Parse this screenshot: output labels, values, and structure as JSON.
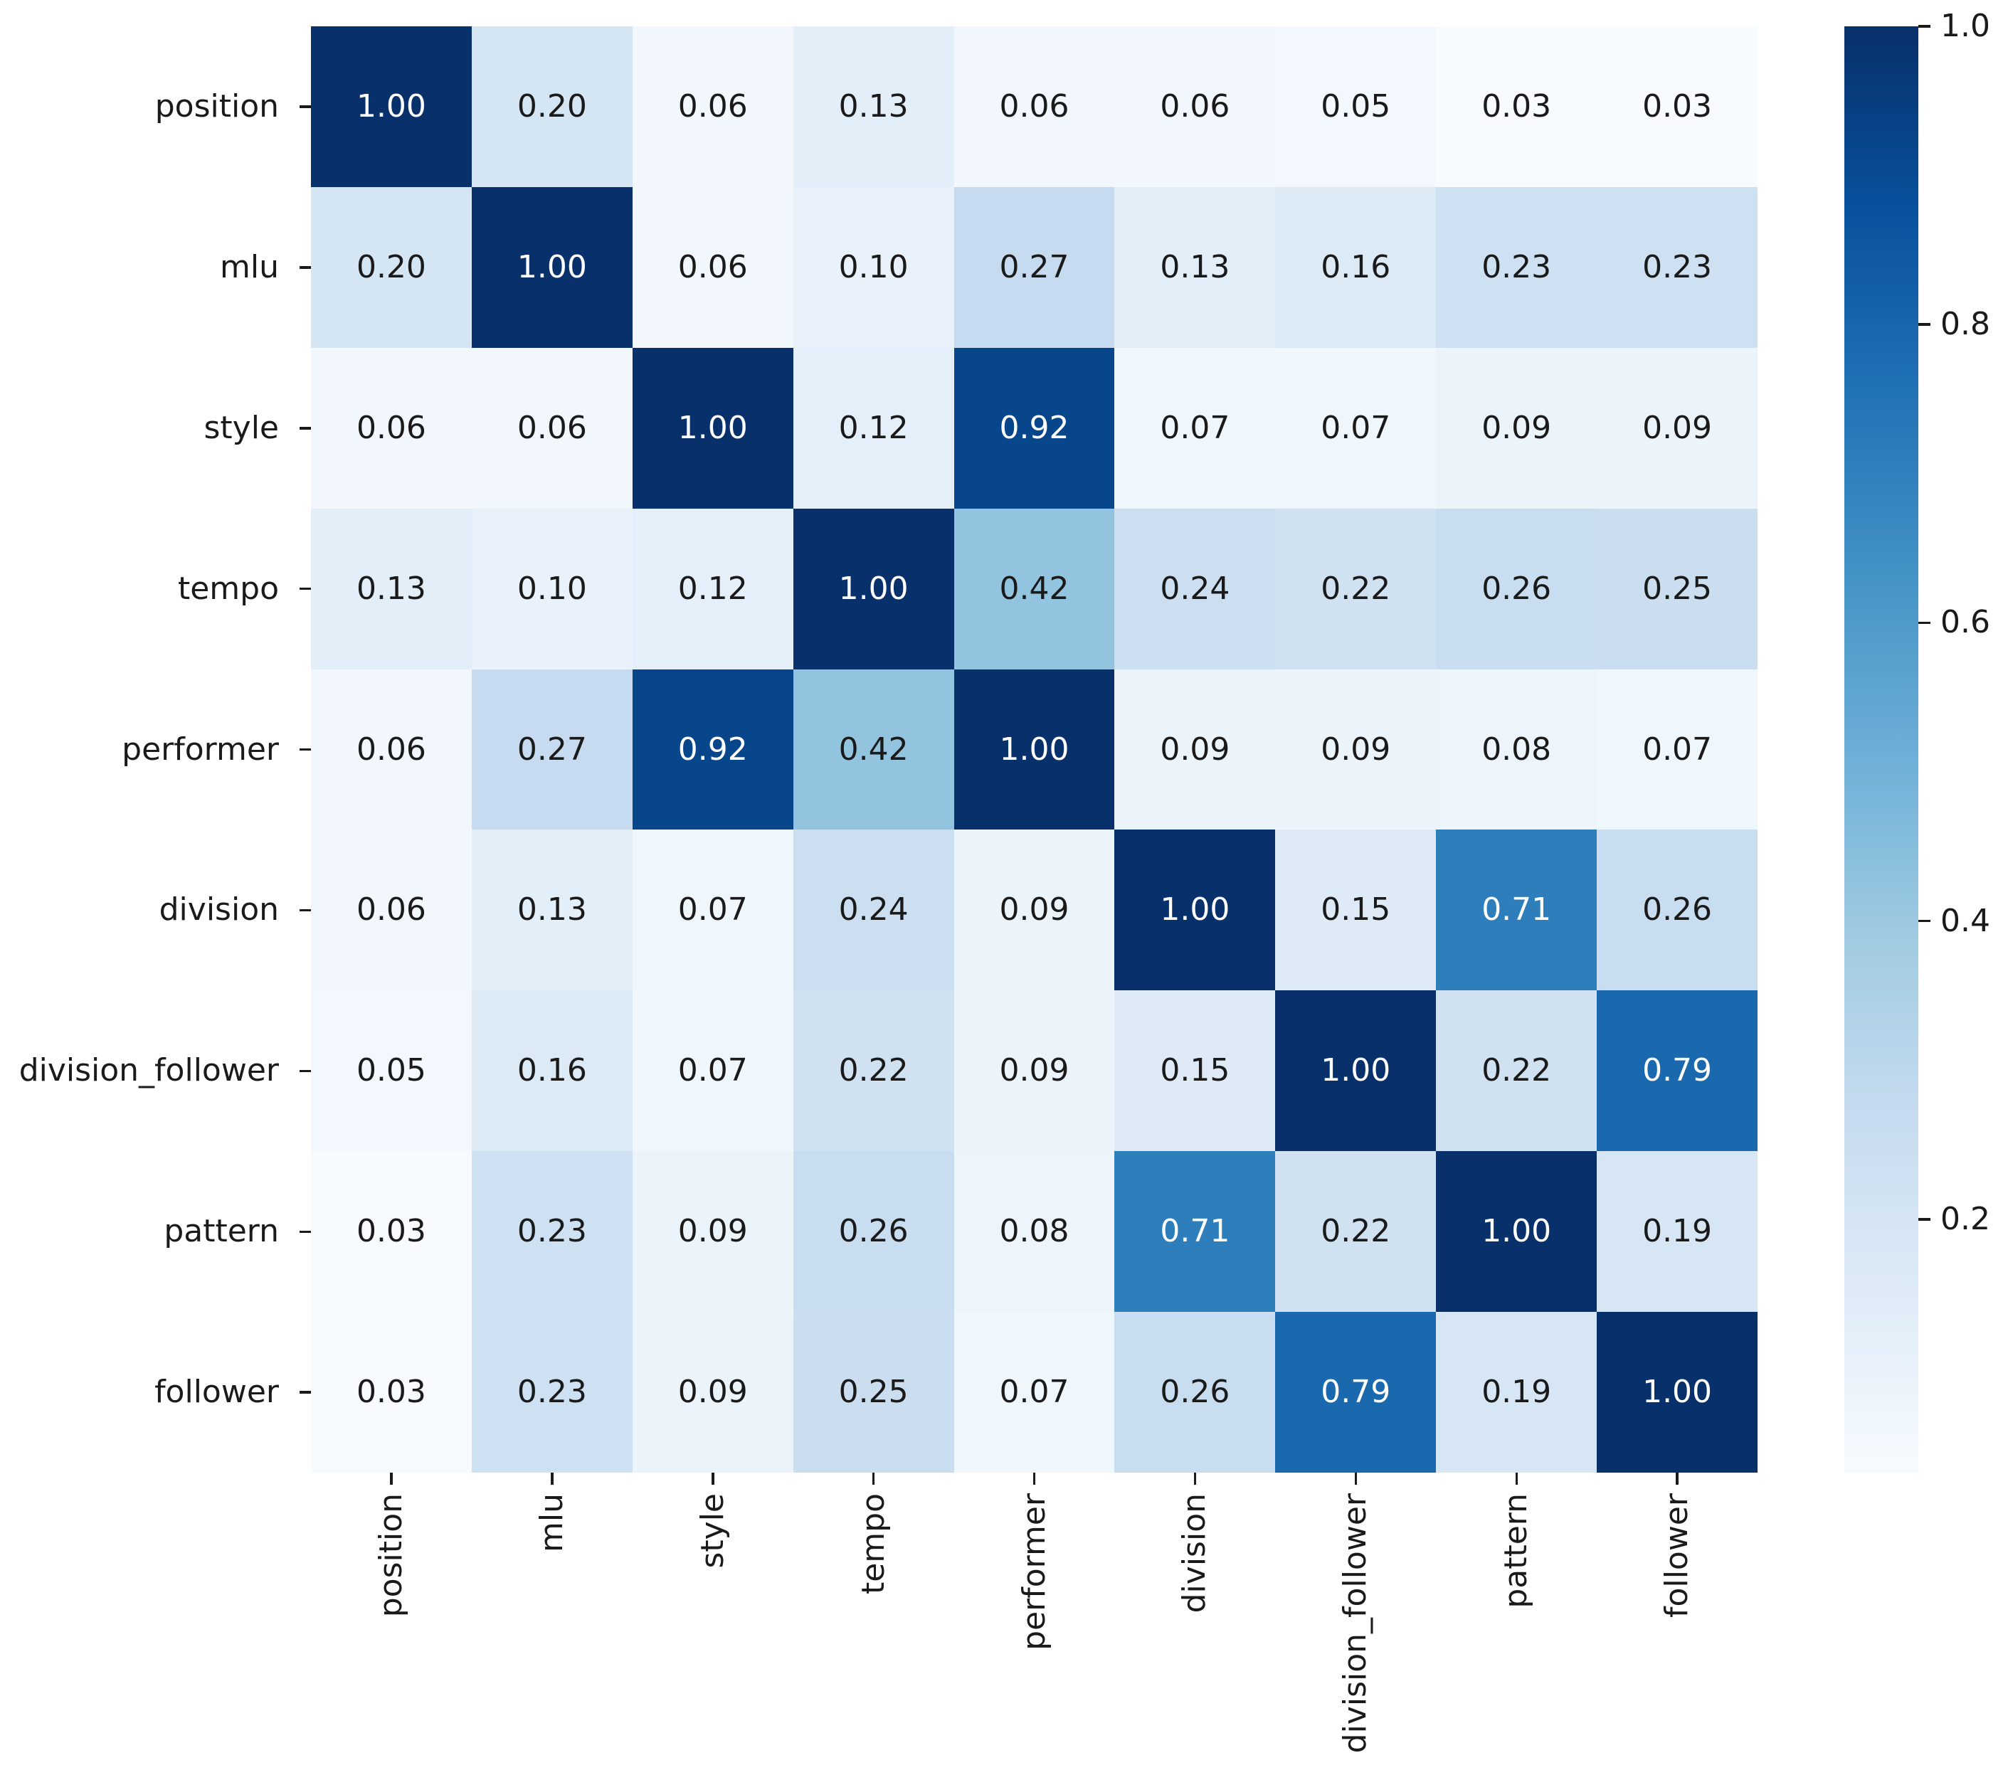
{
  "figure": {
    "type": "correlation-heatmap",
    "background": "#ffffff"
  },
  "chart_data": {
    "type": "heatmap",
    "title": "",
    "xlabel": "",
    "ylabel": "",
    "categories": [
      "position",
      "mlu",
      "style",
      "tempo",
      "performer",
      "division",
      "division_follower",
      "pattern",
      "follower"
    ],
    "matrix": [
      [
        1.0,
        0.2,
        0.06,
        0.13,
        0.06,
        0.06,
        0.05,
        0.03,
        0.03
      ],
      [
        0.2,
        1.0,
        0.06,
        0.1,
        0.27,
        0.13,
        0.16,
        0.23,
        0.23
      ],
      [
        0.06,
        0.06,
        1.0,
        0.12,
        0.92,
        0.07,
        0.07,
        0.09,
        0.09
      ],
      [
        0.13,
        0.1,
        0.12,
        1.0,
        0.42,
        0.24,
        0.22,
        0.26,
        0.25
      ],
      [
        0.06,
        0.27,
        0.92,
        0.42,
        1.0,
        0.09,
        0.09,
        0.08,
        0.07
      ],
      [
        0.06,
        0.13,
        0.07,
        0.24,
        0.09,
        1.0,
        0.15,
        0.71,
        0.26
      ],
      [
        0.05,
        0.16,
        0.07,
        0.22,
        0.09,
        0.15,
        1.0,
        0.22,
        0.79
      ],
      [
        0.03,
        0.23,
        0.09,
        0.26,
        0.08,
        0.71,
        0.22,
        1.0,
        0.19
      ],
      [
        0.03,
        0.23,
        0.09,
        0.25,
        0.07,
        0.26,
        0.79,
        0.19,
        1.0
      ]
    ],
    "annotation_decimals": 2,
    "colormap": "Blues",
    "vmin": 0.03,
    "vmax": 1.0,
    "colormap_stops": [
      "#f7fbff",
      "#deebf7",
      "#c6dbef",
      "#9ecae1",
      "#6baed6",
      "#4292c6",
      "#2171b5",
      "#08519c",
      "#08306b"
    ],
    "colorbar": {
      "position": "right",
      "tick_values": [
        1.0,
        0.8,
        0.6,
        0.4,
        0.2
      ],
      "tick_labels": [
        "1.0",
        "0.8",
        "0.6",
        "0.4",
        "0.2"
      ]
    },
    "annotation_colors": {
      "on_dark": "#ffffff",
      "on_light": "#1a1a1a"
    },
    "tick_color": "#1a1a1a",
    "label_color": "#1a1a1a",
    "grid": false,
    "legend": false
  }
}
